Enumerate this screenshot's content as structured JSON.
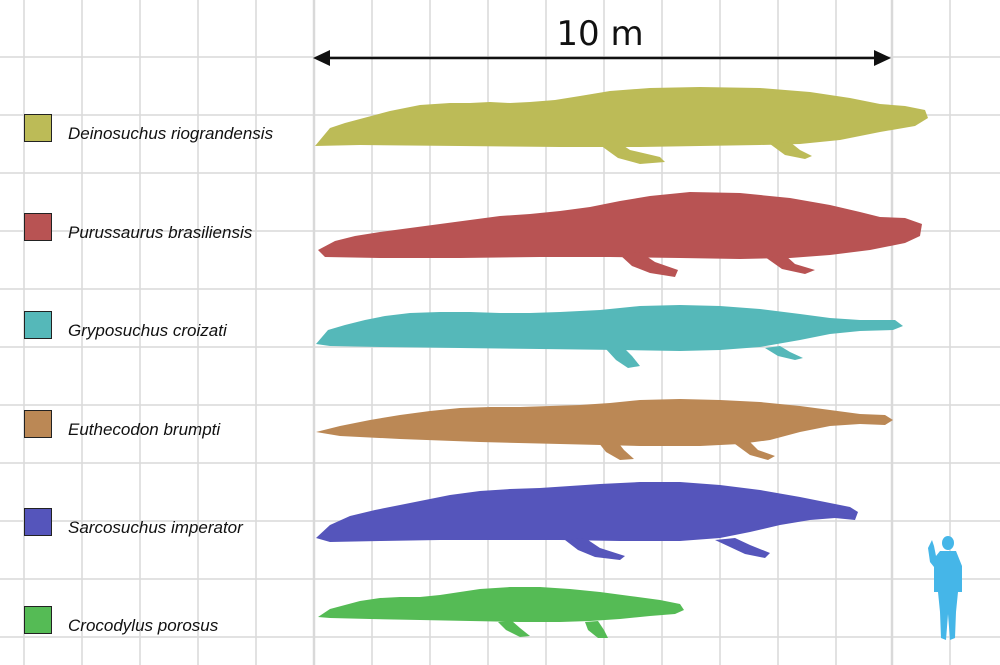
{
  "scale_bar": {
    "label": "10 m"
  },
  "species": [
    {
      "name": "Deinosuchus riograndensis",
      "color": "#bcbb57"
    },
    {
      "name": "Purussaurus brasiliensis",
      "color": "#b85353"
    },
    {
      "name": "Gryposuchus croizati",
      "color": "#55b8b9"
    },
    {
      "name": "Euthecodon brumpti",
      "color": "#bb8855"
    },
    {
      "name": "Sarcosuchus imperator",
      "color": "#5555bb"
    },
    {
      "name": "Crocodylus porosus",
      "color": "#55bb55"
    }
  ],
  "human": {
    "color": "#45b6e8",
    "icon": "human-silhouette-icon"
  },
  "grid": {
    "color": "#d9d9d9"
  }
}
